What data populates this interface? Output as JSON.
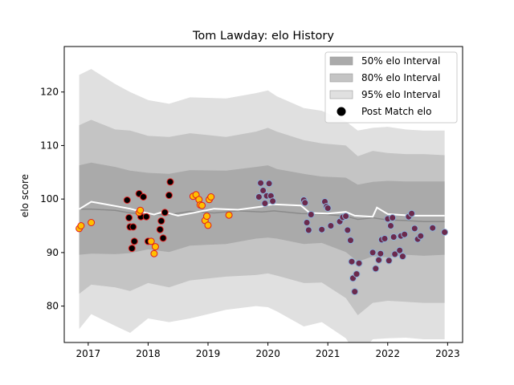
{
  "chart_data": {
    "type": "area",
    "title": "Tom Lawday: elo History",
    "xlabel": "",
    "ylabel": "elo score",
    "xlim": [
      2016.6,
      2023.25
    ],
    "ylim": [
      73.2,
      128.5
    ],
    "x_ticks": [
      2017,
      2018,
      2019,
      2020,
      2021,
      2022,
      2023
    ],
    "y_ticks": [
      80,
      90,
      100,
      110,
      120
    ],
    "legend": {
      "placement": "top-right",
      "entries": [
        "50% elo Interval",
        "80% elo Interval",
        "95% elo Interval",
        "Post Match elo"
      ]
    },
    "colors": {
      "band50": "#aaaaaa",
      "band80": "#c4c4c4",
      "band95": "#e0e0e0",
      "mean_line": "#8a8a8a",
      "median_line": "#ffffff",
      "marker_early_fill": "#000000",
      "marker_early_edge": "#e11d1d",
      "marker_mid_fill": "#ffc000",
      "marker_mid_edge": "#e11d1d",
      "marker_late_fill": "#6b2a4d",
      "marker_late_edge": "#8fb3d9"
    },
    "bands": {
      "x": [
        2016.85,
        2017.05,
        2017.45,
        2017.7,
        2018.0,
        2018.35,
        2018.7,
        2019.3,
        2019.8,
        2020.0,
        2020.15,
        2020.6,
        2020.9,
        2021.3,
        2021.5,
        2021.75,
        2022.0,
        2022.3,
        2022.6,
        2022.95
      ],
      "p95_upper": [
        123.2,
        124.3,
        121.5,
        120.0,
        118.5,
        117.8,
        119.0,
        118.8,
        119.8,
        120.3,
        119.2,
        117.0,
        116.5,
        114.5,
        112.8,
        113.3,
        113.5,
        113.0,
        112.8,
        112.8
      ],
      "p80_upper": [
        113.8,
        114.8,
        113.0,
        112.8,
        111.8,
        111.6,
        112.3,
        111.6,
        112.6,
        113.3,
        112.6,
        111.0,
        110.4,
        110.0,
        108.0,
        109.0,
        108.6,
        108.4,
        108.4,
        108.2
      ],
      "p50_upper": [
        106.3,
        106.8,
        106.0,
        105.3,
        104.9,
        104.7,
        105.4,
        105.3,
        106.0,
        106.3,
        105.6,
        104.7,
        104.2,
        104.0,
        102.7,
        103.2,
        103.4,
        103.3,
        103.3,
        103.3
      ],
      "p50_lower": [
        89.6,
        89.8,
        89.7,
        89.9,
        90.6,
        90.1,
        91.3,
        91.6,
        92.6,
        92.8,
        92.6,
        91.6,
        91.8,
        90.1,
        88.3,
        89.3,
        89.1,
        89.6,
        89.4,
        89.6
      ],
      "p80_lower": [
        82.3,
        84.0,
        83.5,
        82.8,
        84.3,
        83.5,
        84.8,
        85.5,
        85.8,
        86.1,
        85.7,
        84.3,
        84.4,
        81.5,
        78.3,
        80.6,
        81.0,
        80.8,
        80.6,
        80.6
      ],
      "p95_lower": [
        75.7,
        78.5,
        76.3,
        75.0,
        77.7,
        77.0,
        77.7,
        79.3,
        80.0,
        79.8,
        79.0,
        76.2,
        77.0,
        74.0,
        70.5,
        73.8,
        74.0,
        74.1,
        73.8,
        73.8
      ]
    },
    "series": [
      {
        "name": "mean",
        "x": [
          2016.85,
          2017.05,
          2017.45,
          2017.7,
          2017.95,
          2018.3,
          2018.7,
          2019.1,
          2019.5,
          2019.9,
          2020.1,
          2020.55,
          2020.9,
          2021.3,
          2021.5,
          2021.75,
          2022.0,
          2022.3,
          2022.6,
          2022.95
        ],
        "values": [
          98.1,
          98.1,
          97.9,
          97.4,
          97.3,
          97.0,
          97.7,
          97.4,
          97.8,
          97.6,
          97.8,
          97.3,
          97.2,
          96.8,
          96.2,
          96.5,
          96.1,
          96.0,
          95.8,
          95.8
        ]
      },
      {
        "name": "median",
        "x": [
          2016.85,
          2017.05,
          2017.45,
          2017.7,
          2017.9,
          2018.1,
          2018.25,
          2018.5,
          2018.7,
          2019.1,
          2019.5,
          2019.9,
          2020.0,
          2020.1,
          2020.55,
          2020.7,
          2021.0,
          2021.3,
          2021.45,
          2021.75,
          2021.82,
          2022.0,
          2022.4,
          2022.95
        ],
        "values": [
          98.1,
          99.5,
          98.7,
          98.2,
          97.6,
          97.1,
          97.6,
          96.9,
          97.3,
          98.2,
          98.0,
          98.6,
          98.9,
          99.0,
          98.8,
          97.4,
          97.3,
          97.6,
          96.9,
          96.7,
          98.4,
          97.2,
          96.9,
          96.9
        ]
      }
    ],
    "post_match_points": [
      {
        "group": "early",
        "points": [
          [
            2017.65,
            99.8
          ],
          [
            2017.68,
            96.5
          ],
          [
            2017.7,
            94.8
          ],
          [
            2017.73,
            90.8
          ],
          [
            2017.75,
            94.8
          ],
          [
            2017.77,
            92.1
          ],
          [
            2017.85,
            101.0
          ],
          [
            2017.88,
            96.7
          ],
          [
            2017.92,
            100.4
          ],
          [
            2017.97,
            96.7
          ],
          [
            2018.0,
            92.1
          ],
          [
            2018.2,
            94.3
          ],
          [
            2018.22,
            95.9
          ],
          [
            2018.25,
            92.7
          ],
          [
            2018.28,
            97.5
          ],
          [
            2018.35,
            100.7
          ],
          [
            2018.37,
            103.2
          ]
        ]
      },
      {
        "group": "mid",
        "points": [
          [
            2016.85,
            94.5
          ],
          [
            2016.88,
            95.0
          ],
          [
            2017.05,
            95.6
          ],
          [
            2017.85,
            97.5
          ],
          [
            2017.87,
            97.9
          ],
          [
            2018.05,
            92.1
          ],
          [
            2018.1,
            89.8
          ],
          [
            2018.12,
            91.1
          ],
          [
            2018.75,
            100.5
          ],
          [
            2018.8,
            100.8
          ],
          [
            2018.85,
            99.9
          ],
          [
            2018.87,
            98.9
          ],
          [
            2018.9,
            98.8
          ],
          [
            2018.95,
            96.0
          ],
          [
            2018.98,
            96.8
          ],
          [
            2019.0,
            95.1
          ],
          [
            2019.02,
            99.9
          ],
          [
            2019.05,
            100.4
          ],
          [
            2019.35,
            97.0
          ]
        ]
      },
      {
        "group": "late",
        "points": [
          [
            2019.85,
            100.4
          ],
          [
            2019.88,
            103.0
          ],
          [
            2019.92,
            101.6
          ],
          [
            2019.95,
            99.2
          ],
          [
            2019.98,
            100.6
          ],
          [
            2020.02,
            102.9
          ],
          [
            2020.05,
            100.6
          ],
          [
            2020.08,
            99.6
          ],
          [
            2020.6,
            99.8
          ],
          [
            2020.62,
            99.3
          ],
          [
            2020.65,
            95.6
          ],
          [
            2020.68,
            94.2
          ],
          [
            2020.72,
            97.1
          ],
          [
            2020.9,
            94.3
          ],
          [
            2020.95,
            99.5
          ],
          [
            2020.98,
            98.6
          ],
          [
            2021.0,
            98.3
          ],
          [
            2021.05,
            95.0
          ],
          [
            2021.2,
            95.8
          ],
          [
            2021.25,
            96.6
          ],
          [
            2021.3,
            96.8
          ],
          [
            2021.33,
            94.2
          ],
          [
            2021.38,
            92.3
          ],
          [
            2021.4,
            88.3
          ],
          [
            2021.42,
            85.2
          ],
          [
            2021.45,
            82.7
          ],
          [
            2021.48,
            86.0
          ],
          [
            2021.52,
            88.0
          ],
          [
            2021.75,
            90.0
          ],
          [
            2021.8,
            87.0
          ],
          [
            2021.85,
            88.6
          ],
          [
            2021.88,
            89.8
          ],
          [
            2021.9,
            92.4
          ],
          [
            2021.95,
            92.6
          ],
          [
            2022.0,
            96.3
          ],
          [
            2022.02,
            88.5
          ],
          [
            2022.05,
            95.0
          ],
          [
            2022.08,
            96.5
          ],
          [
            2022.1,
            92.9
          ],
          [
            2022.12,
            89.7
          ],
          [
            2022.2,
            90.4
          ],
          [
            2022.22,
            93.1
          ],
          [
            2022.25,
            89.3
          ],
          [
            2022.28,
            93.4
          ],
          [
            2022.35,
            96.7
          ],
          [
            2022.4,
            97.3
          ],
          [
            2022.45,
            94.5
          ],
          [
            2022.5,
            92.5
          ],
          [
            2022.55,
            93.1
          ],
          [
            2022.75,
            94.6
          ],
          [
            2022.95,
            93.8
          ]
        ]
      }
    ]
  }
}
